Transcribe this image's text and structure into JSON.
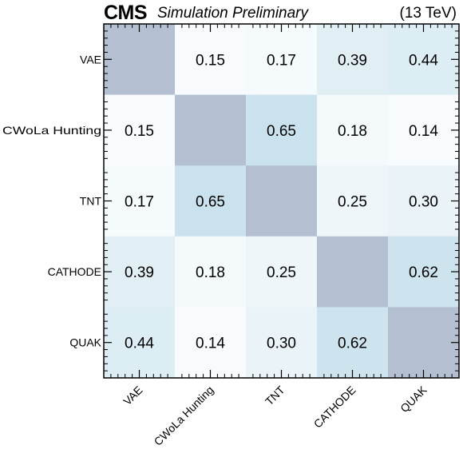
{
  "header": {
    "experiment": "CMS",
    "subtitle": "Simulation Preliminary",
    "energy": "(13 TeV)"
  },
  "chart_data": {
    "type": "heatmap",
    "title": "",
    "xlabel": "",
    "ylabel": "",
    "x_categories": [
      "VAE",
      "CWoLa Hunting",
      "TNT",
      "CATHODE",
      "QUAK"
    ],
    "y_categories": [
      "VAE",
      "CWoLa Hunting",
      "TNT",
      "CATHODE",
      "QUAK"
    ],
    "values": [
      [
        null,
        0.15,
        0.17,
        0.39,
        0.44
      ],
      [
        0.15,
        null,
        0.65,
        0.18,
        0.14
      ],
      [
        0.17,
        0.65,
        null,
        0.25,
        0.3
      ],
      [
        0.39,
        0.18,
        0.25,
        null,
        0.62
      ],
      [
        0.44,
        0.14,
        0.3,
        0.62,
        null
      ]
    ],
    "diagonal_color": "#b4bfd1",
    "low_color": "#fbfdfe",
    "high_color": "#c6e0ec"
  }
}
